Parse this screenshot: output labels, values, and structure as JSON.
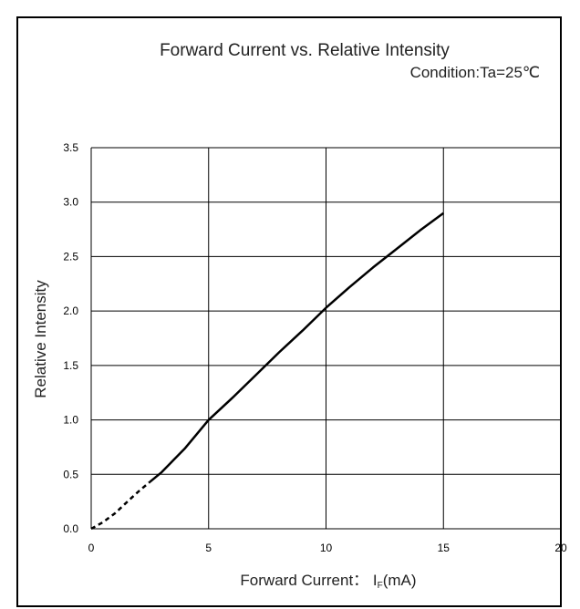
{
  "chart_data": {
    "type": "line",
    "title": "Forward Current vs. Relative Intensity",
    "subtitle": "Condition:Ta=25℃",
    "xlabel_prefix": "Forward Current： I",
    "xlabel_sub": "F",
    "xlabel_suffix": "(mA)",
    "ylabel": "Relative Intensity",
    "xlim": [
      0,
      20
    ],
    "ylim": [
      0,
      3.5
    ],
    "x_ticks": [
      "0",
      "5",
      "10",
      "15",
      "20"
    ],
    "y_ticks": [
      "0.0",
      "0.5",
      "1.0",
      "1.5",
      "2.0",
      "2.5",
      "3.0",
      "3.5"
    ],
    "grid": true,
    "series_dashed": {
      "x": [
        0,
        0.5,
        1.0,
        1.5,
        2.0,
        2.5
      ],
      "y": [
        0.0,
        0.06,
        0.14,
        0.24,
        0.34,
        0.43
      ]
    },
    "series_solid": {
      "x": [
        2.5,
        3.0,
        3.5,
        4.0,
        5.0,
        6.0,
        7.0,
        8.0,
        9.0,
        10.0,
        11.0,
        12.0,
        13.0,
        14.0,
        15.0
      ],
      "y": [
        0.43,
        0.52,
        0.63,
        0.74,
        1.0,
        1.2,
        1.41,
        1.62,
        1.82,
        2.03,
        2.22,
        2.4,
        2.57,
        2.74,
        2.9
      ]
    }
  }
}
